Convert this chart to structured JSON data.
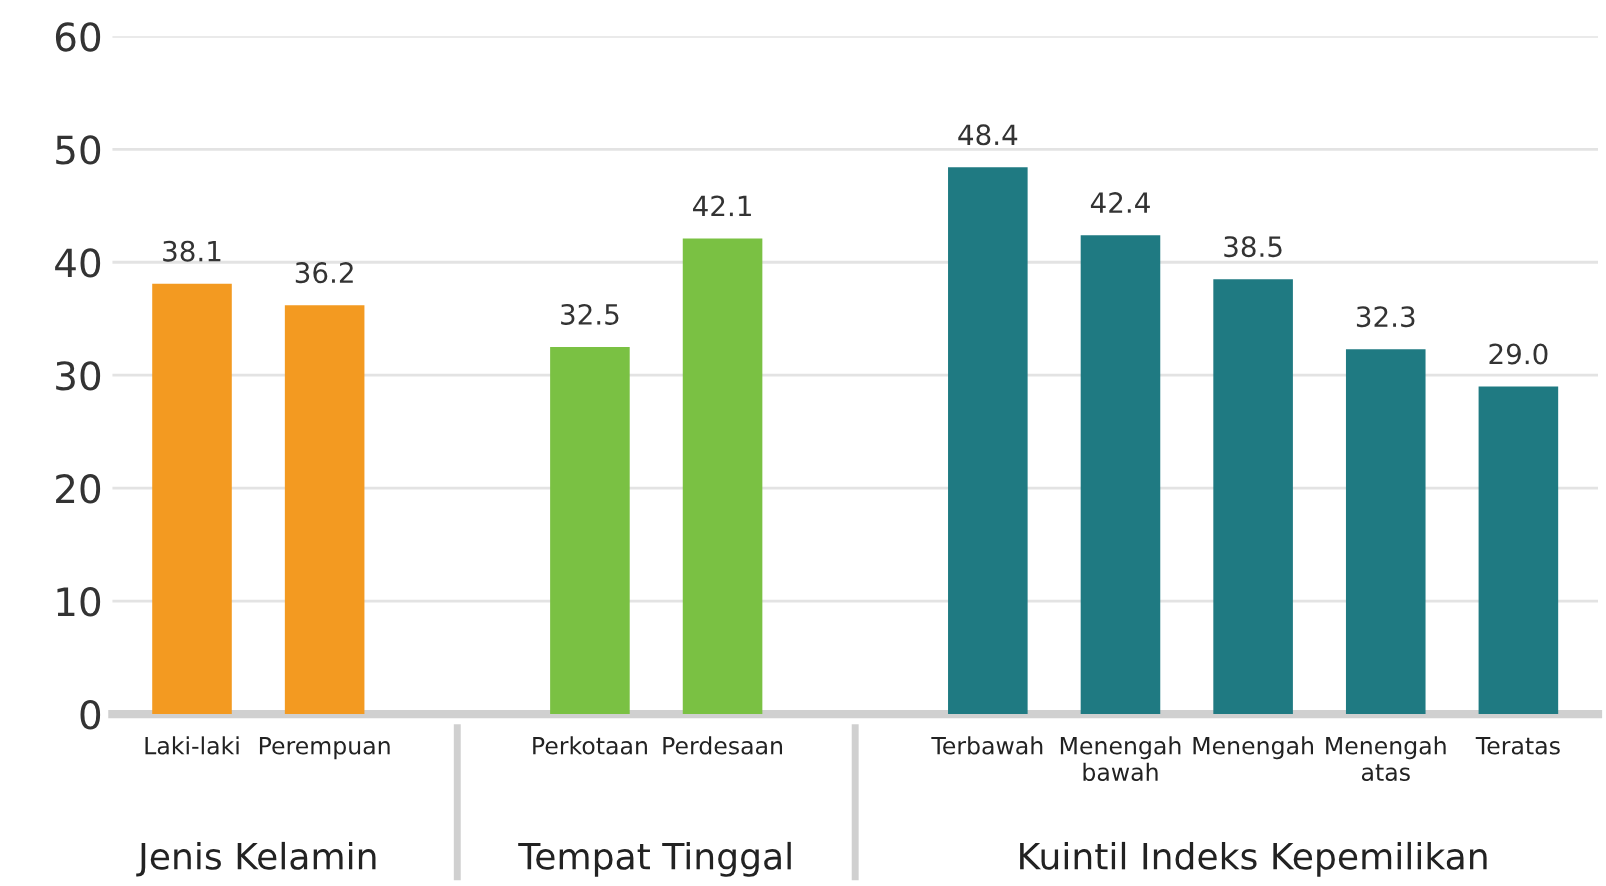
{
  "chart_data": {
    "type": "bar",
    "categories": [
      "Laki-laki",
      "Perempuan",
      null,
      "Perkotaan",
      "Perdesaan",
      null,
      "Terbawah",
      "Menengah\nbawah",
      "Menengah",
      "Menengah\natas",
      "Teratas"
    ],
    "values": [
      38.1,
      36.2,
      null,
      32.5,
      42.1,
      null,
      48.4,
      42.4,
      38.5,
      32.3,
      29.0
    ],
    "value_labels": [
      "38.1",
      "36.2",
      null,
      "32.5",
      "42.1",
      null,
      "48.4",
      "42.4",
      "38.5",
      "32.3",
      "29.0"
    ],
    "colors": [
      "#f39a21",
      "#f39a21",
      null,
      "#7ac143",
      "#7ac143",
      null,
      "#1f7a82",
      "#1f7a82",
      "#1f7a82",
      "#1f7a82",
      "#1f7a82"
    ],
    "annotations": [
      "Jenis Kelamin",
      "Tempat Tinggal",
      "Kuintil Indeks Kepemilikan"
    ],
    "ylim": [
      0,
      60
    ],
    "yticks": [
      0,
      10,
      20,
      30,
      40,
      50,
      60
    ],
    "grid": "y"
  }
}
